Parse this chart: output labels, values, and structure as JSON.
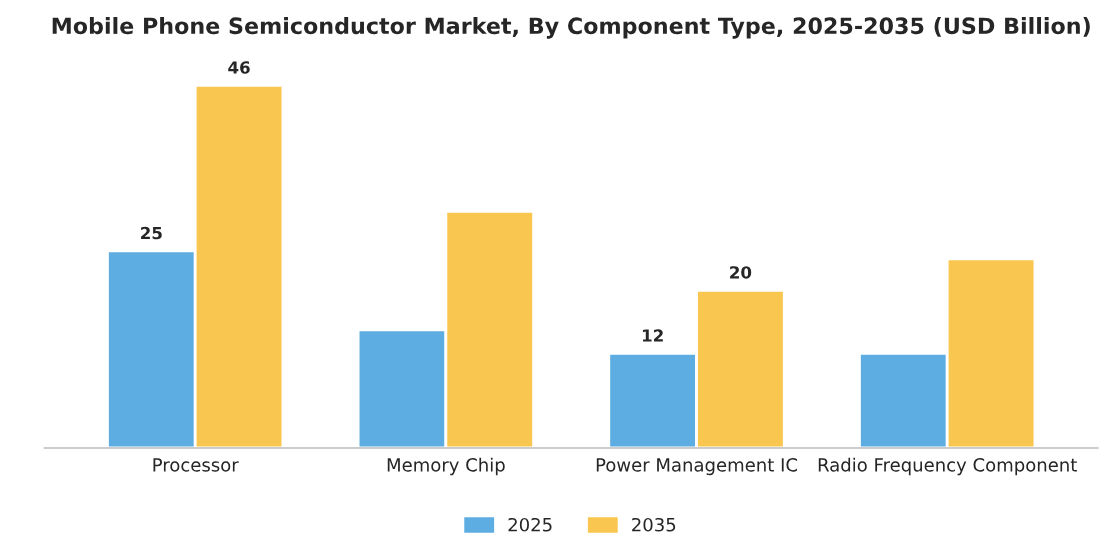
{
  "chart_data": {
    "type": "bar",
    "title": "Mobile Phone Semiconductor Market, By Component Type, 2025-2035 (USD Billion)",
    "categories": [
      "Processor",
      "Memory Chip",
      "Power Management IC",
      "Radio Frequency Component"
    ],
    "series": [
      {
        "name": "2025",
        "color": "#5dade2",
        "values": [
          25,
          15,
          12,
          12
        ],
        "value_labels": [
          "25",
          null,
          "12",
          null
        ]
      },
      {
        "name": "2035",
        "color": "#f9c74f",
        "values": [
          46,
          30,
          20,
          24
        ],
        "value_labels": [
          "46",
          null,
          "20",
          null
        ]
      }
    ],
    "grid": false,
    "legend": "bottom"
  }
}
